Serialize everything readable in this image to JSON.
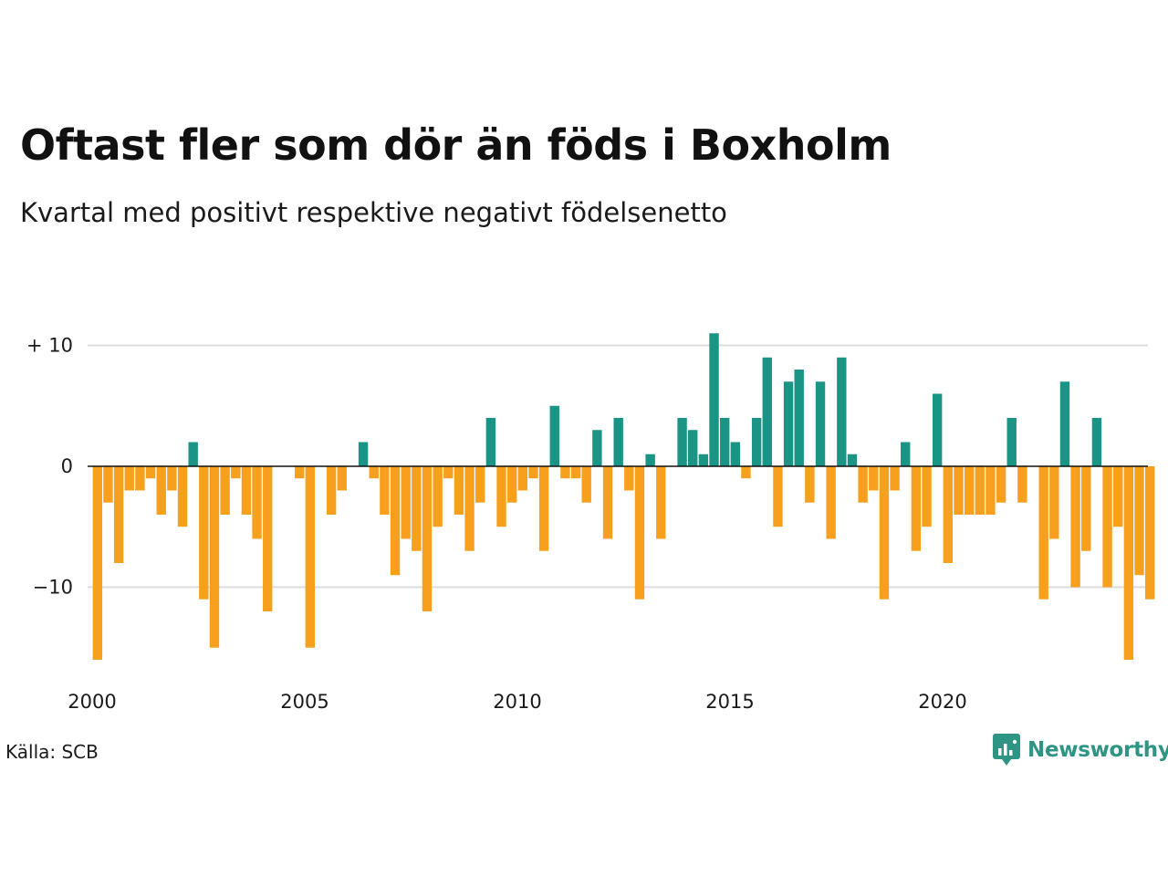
{
  "title": "Oftast fler som dör än föds i Boxholm",
  "subtitle": "Kvartal med positivt respektive negativt födelsenetto",
  "source": "Källa: SCB",
  "brand": {
    "name": "Newsworthy",
    "icon": "newsworthy-logo-icon"
  },
  "colors": {
    "positive": "#1a9485",
    "negative": "#f7a01e",
    "grid": "#dcdcdc",
    "baseline": "#111111"
  },
  "chart_data": {
    "type": "bar",
    "title": "Oftast fler som dör än föds i Boxholm",
    "subtitle": "Kvartal med positivt respektive negativt födelsenetto",
    "xlabel": "",
    "ylabel": "",
    "x_start": 2000,
    "periods_per_year": 4,
    "xlim": [
      2000,
      2025
    ],
    "ylim": [
      -16,
      11
    ],
    "y_ticks": [
      {
        "value": 10,
        "label": "+ 10"
      },
      {
        "value": 0,
        "label": "0"
      },
      {
        "value": -10,
        "label": "−10"
      }
    ],
    "x_ticks": [
      {
        "value": 2000,
        "label": "2000"
      },
      {
        "value": 2005,
        "label": "2005"
      },
      {
        "value": 2010,
        "label": "2010"
      },
      {
        "value": 2015,
        "label": "2015"
      },
      {
        "value": 2020,
        "label": "2020"
      }
    ],
    "grid": true,
    "values": [
      -16,
      -3,
      -8,
      -2,
      -2,
      -1,
      -4,
      -2,
      -5,
      2,
      -11,
      -15,
      -4,
      -1,
      -4,
      -6,
      -12,
      0,
      0,
      -1,
      -15,
      0,
      -4,
      -2,
      0,
      2,
      -1,
      -4,
      -9,
      -6,
      -7,
      -12,
      -5,
      -1,
      -4,
      -7,
      -3,
      4,
      -5,
      -3,
      -2,
      -1,
      -7,
      5,
      -1,
      -1,
      -3,
      3,
      -6,
      4,
      -2,
      -11,
      1,
      -6,
      0,
      4,
      3,
      1,
      11,
      4,
      2,
      -1,
      4,
      9,
      -5,
      7,
      8,
      -3,
      7,
      -6,
      9,
      1,
      -3,
      -2,
      -11,
      -2,
      2,
      -7,
      -5,
      6,
      -8,
      -4,
      -4,
      -4,
      -4,
      -3,
      4,
      -3,
      0,
      -11,
      -6,
      7,
      -10,
      -7,
      4,
      -10,
      -5,
      -16,
      -9,
      -11
    ]
  }
}
